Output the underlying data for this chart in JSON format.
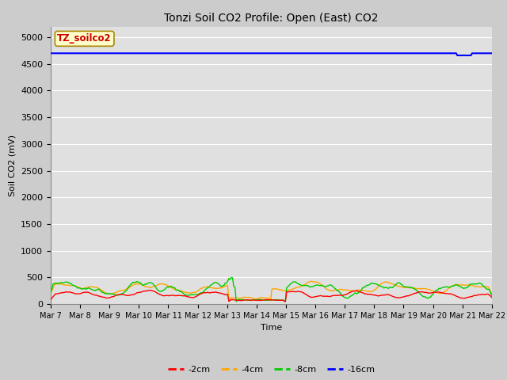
{
  "title": "Tonzi Soil CO2 Profile: Open (East) CO2",
  "ylabel": "Soil CO2 (mV)",
  "xlabel": "Time",
  "watermark_text": "TZ_soilco2",
  "ylim": [
    0,
    5200
  ],
  "yticks": [
    0,
    500,
    1000,
    1500,
    2000,
    2500,
    3000,
    3500,
    4000,
    4500,
    5000
  ],
  "colors": {
    "neg2cm": "#ff0000",
    "neg4cm": "#ffa500",
    "neg8cm": "#00cc00",
    "neg16cm": "#0000ff"
  },
  "legend_labels": [
    "-2cm",
    "-4cm",
    "-8cm",
    "-16cm"
  ],
  "background_color": "#cccccc",
  "plot_bg_color": "#e0e0e0",
  "n_points": 360,
  "seed": 42,
  "title_fontsize": 10,
  "label_fontsize": 8,
  "tick_fontsize": 7,
  "legend_fontsize": 8
}
